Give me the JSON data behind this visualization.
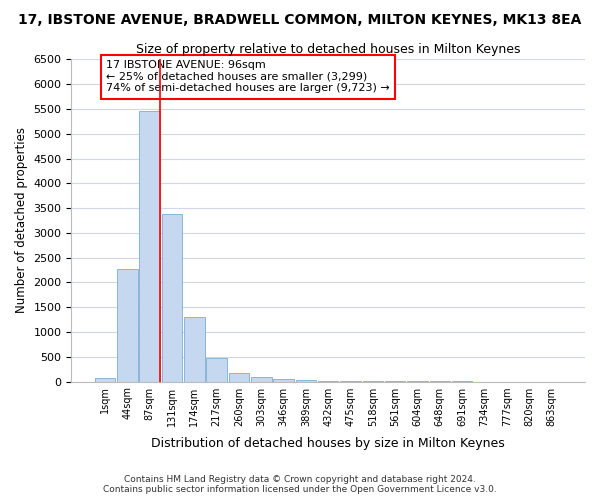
{
  "title1": "17, IBSTONE AVENUE, BRADWELL COMMON, MILTON KEYNES, MK13 8EA",
  "title2": "Size of property relative to detached houses in Milton Keynes",
  "xlabel": "Distribution of detached houses by size in Milton Keynes",
  "ylabel": "Number of detached properties",
  "footer1": "Contains HM Land Registry data © Crown copyright and database right 2024.",
  "footer2": "Contains public sector information licensed under the Open Government Licence v3.0.",
  "bar_labels": [
    "1sqm",
    "44sqm",
    "87sqm",
    "131sqm",
    "174sqm",
    "217sqm",
    "260sqm",
    "303sqm",
    "346sqm",
    "389sqm",
    "432sqm",
    "475sqm",
    "518sqm",
    "561sqm",
    "604sqm",
    "648sqm",
    "691sqm",
    "734sqm",
    "777sqm",
    "820sqm",
    "863sqm"
  ],
  "bar_values": [
    70,
    2270,
    5450,
    3380,
    1310,
    480,
    165,
    90,
    60,
    35,
    20,
    10,
    5,
    3,
    2,
    1,
    1,
    0,
    0,
    0,
    0
  ],
  "bar_color": "#c5d8f0",
  "bar_edge_color": "#7aadd4",
  "ylim": [
    0,
    6500
  ],
  "yticks": [
    0,
    500,
    1000,
    1500,
    2000,
    2500,
    3000,
    3500,
    4000,
    4500,
    5000,
    5500,
    6000,
    6500
  ],
  "vline_x": 2.45,
  "annotation_title": "17 IBSTONE AVENUE: 96sqm",
  "annotation_line1": "← 25% of detached houses are smaller (3,299)",
  "annotation_line2": "74% of semi-detached houses are larger (9,723) →",
  "bg_color": "#ffffff",
  "grid_color": "#d0d8e8",
  "title1_fontsize": 10,
  "title2_fontsize": 9
}
